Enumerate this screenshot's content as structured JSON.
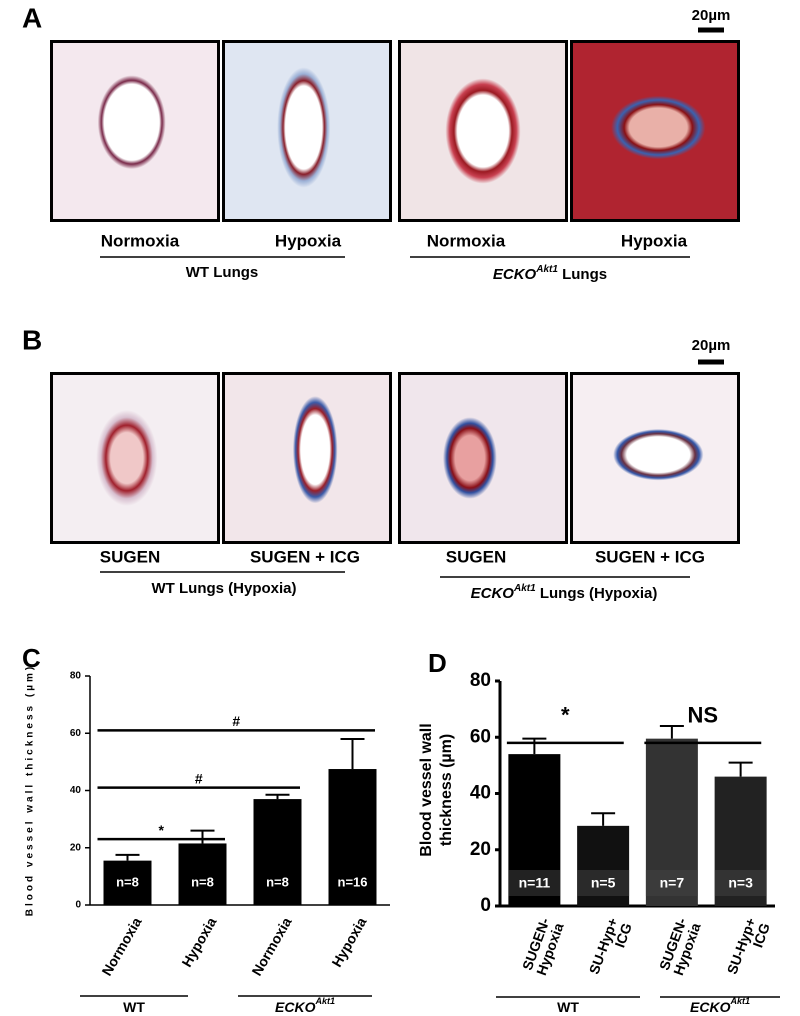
{
  "panel_a": {
    "label": "A",
    "scale_bar": "20µm",
    "captions": [
      "Normoxia",
      "Hypoxia",
      "Normoxia",
      "Hypoxia"
    ],
    "group_wt": "WT Lungs",
    "group_ko": {
      "text": "ECKO",
      "sup": "Akt1",
      "rest": " Lungs"
    }
  },
  "panel_b": {
    "label": "B",
    "scale_bar": "20µm",
    "captions": [
      "SUGEN",
      "SUGEN + ICG",
      "SUGEN",
      "SUGEN + ICG"
    ],
    "group_wt": "WT Lungs (Hypoxia)",
    "group_ko": {
      "text": "ECKO",
      "sup": "Akt1",
      "rest": " Lungs (Hypoxia)"
    }
  },
  "chart_data": [
    {
      "type": "bar",
      "panel_label": "C",
      "y_label": "Blood vessel wall thickness (µm)",
      "categories": [
        "Normoxia",
        "Hypoxia",
        "Normoxia",
        "Hypoxia"
      ],
      "values": [
        15.5,
        21.5,
        37,
        47.5
      ],
      "errors": [
        2,
        4.5,
        1.5,
        10.5
      ],
      "colors": [
        "#000000",
        "#000000",
        "#000000",
        "#000000"
      ],
      "sample_sizes": [
        "n=8",
        "n=8",
        "n=8",
        "n=16"
      ],
      "ylim": [
        0,
        80
      ],
      "yticks": [
        0,
        20,
        40,
        60,
        80
      ],
      "significance": [
        {
          "from": 0,
          "to": 1,
          "y": 23,
          "label": "*"
        },
        {
          "from": 0,
          "to": 2,
          "y": 41,
          "label": "#"
        },
        {
          "from": 0,
          "to": 3,
          "y": 61,
          "label": "#"
        }
      ],
      "groups": [
        {
          "text": "WT",
          "sup": ""
        },
        {
          "text": "ECKO",
          "sup": "Akt1"
        }
      ]
    },
    {
      "type": "bar",
      "panel_label": "D",
      "y_label": "Blood vessel wall\nthickness (µm)",
      "categories": [
        "SUGEN-\nHypoxia",
        "SU-Hyp+\nICG",
        "SUGEN-\nHypoxia",
        "SU-Hyp+\nICG"
      ],
      "values": [
        54,
        28.5,
        59.5,
        46
      ],
      "errors": [
        5.5,
        4.5,
        4.5,
        5
      ],
      "colors": [
        "#000000",
        "#111111",
        "#333333",
        "#222222"
      ],
      "sample_sizes": [
        "n=11",
        "n=5",
        "n=7",
        "n=3"
      ],
      "ylim": [
        0,
        80
      ],
      "yticks": [
        0,
        20,
        40,
        60,
        80
      ],
      "significance": [
        {
          "from": 0,
          "to": 1,
          "y": 58,
          "label": "*"
        },
        {
          "from": 2,
          "to": 3,
          "y": 58,
          "label": "NS"
        }
      ],
      "groups": [
        {
          "text": "WT",
          "sup": ""
        },
        {
          "text": "ECKO",
          "sup": "Akt1"
        }
      ]
    }
  ]
}
